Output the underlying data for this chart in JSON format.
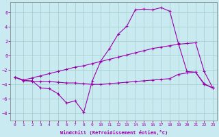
{
  "xlabel": "Windchill (Refroidissement éolien,°C)",
  "ylabel": "",
  "xlim": [
    -0.5,
    23.5
  ],
  "ylim": [
    -9,
    7.5
  ],
  "yticks": [
    -8,
    -6,
    -4,
    -2,
    0,
    2,
    4,
    6
  ],
  "xticks": [
    0,
    1,
    2,
    3,
    4,
    5,
    6,
    7,
    8,
    9,
    10,
    11,
    12,
    13,
    14,
    15,
    16,
    17,
    18,
    19,
    20,
    21,
    22,
    23
  ],
  "bg_color": "#c8eaf0",
  "line_color": "#9900aa",
  "grid_color": "#a0ccc8",
  "line1_x": [
    0,
    1,
    2,
    3,
    4,
    5,
    6,
    7,
    8,
    9,
    10,
    11,
    12,
    13,
    14,
    15,
    16,
    17,
    18,
    19,
    20,
    21,
    22,
    23
  ],
  "line1_y": [
    -3.0,
    -3.5,
    -3.5,
    -4.5,
    -4.6,
    -5.3,
    -6.6,
    -6.3,
    -7.9,
    -3.5,
    -0.7,
    1.0,
    3.0,
    4.1,
    6.4,
    6.5,
    6.4,
    6.7,
    6.2,
    1.7,
    -2.2,
    -2.3,
    -4.0,
    -4.5
  ],
  "line2_x": [
    0,
    1,
    2,
    3,
    4,
    5,
    6,
    7,
    8,
    9,
    10,
    11,
    12,
    13,
    14,
    15,
    16,
    17,
    18,
    19,
    20,
    21,
    22,
    23
  ],
  "line2_y": [
    -3.0,
    -3.4,
    -3.1,
    -2.8,
    -2.5,
    -2.2,
    -1.9,
    -1.6,
    -1.4,
    -1.1,
    -0.8,
    -0.5,
    -0.2,
    0.1,
    0.4,
    0.7,
    1.0,
    1.2,
    1.4,
    1.6,
    1.7,
    1.8,
    -2.2,
    -4.5
  ],
  "line3_x": [
    0,
    1,
    2,
    3,
    4,
    5,
    6,
    7,
    8,
    9,
    10,
    11,
    12,
    13,
    14,
    15,
    16,
    17,
    18,
    19,
    20,
    21,
    22,
    23
  ],
  "line3_y": [
    -3.0,
    -3.4,
    -3.6,
    -3.6,
    -3.6,
    -3.7,
    -3.8,
    -3.8,
    -3.9,
    -4.0,
    -4.0,
    -3.9,
    -3.8,
    -3.7,
    -3.6,
    -3.5,
    -3.4,
    -3.3,
    -3.2,
    -2.6,
    -2.4,
    -2.3,
    -3.9,
    -4.5
  ]
}
